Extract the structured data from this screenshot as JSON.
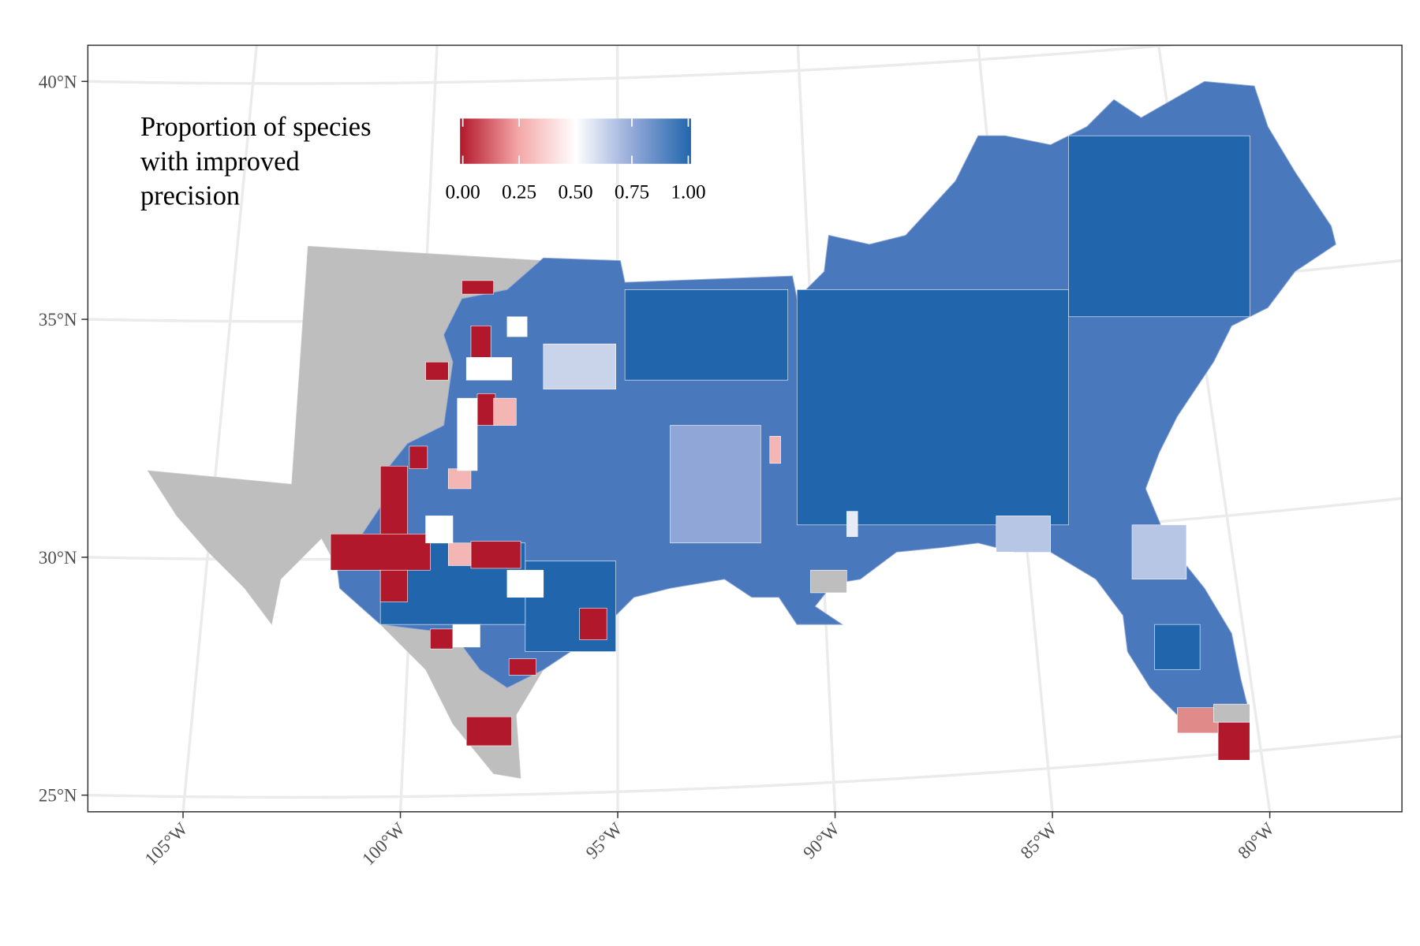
{
  "chart_data": {
    "type": "choropleth",
    "legend": {
      "title_lines": [
        "Proportion of species",
        "with improved",
        "precision"
      ],
      "colors": [
        "#b2182b",
        "#f4a6a6",
        "#ffffff",
        "#92a8d8",
        "#2166ac"
      ],
      "limits": [
        0,
        1
      ],
      "ticks": [
        {
          "value": 0,
          "label": "0.00"
        },
        {
          "value": 0.25,
          "label": "0.25"
        },
        {
          "value": 0.5,
          "label": "0.50"
        },
        {
          "value": 0.75,
          "label": "0.75"
        },
        {
          "value": 1,
          "label": "1.00"
        }
      ]
    },
    "xlim": [
      -107.19,
      -76.96
    ],
    "ylim": [
      24.65,
      40.76
    ],
    "xticks": [
      {
        "value": -105,
        "label": "105°W"
      },
      {
        "value": -100,
        "label": "100°W"
      },
      {
        "value": -95,
        "label": "95°W"
      },
      {
        "value": -90,
        "label": "90°W"
      },
      {
        "value": -85,
        "label": "85°W"
      },
      {
        "value": -80,
        "label": "80°W"
      }
    ],
    "yticks": [
      {
        "value": 25,
        "label": "25°N"
      },
      {
        "value": 30,
        "label": "30°N"
      },
      {
        "value": 35,
        "label": "35°N"
      },
      {
        "value": 40,
        "label": "40°N"
      }
    ],
    "grid": true
  }
}
